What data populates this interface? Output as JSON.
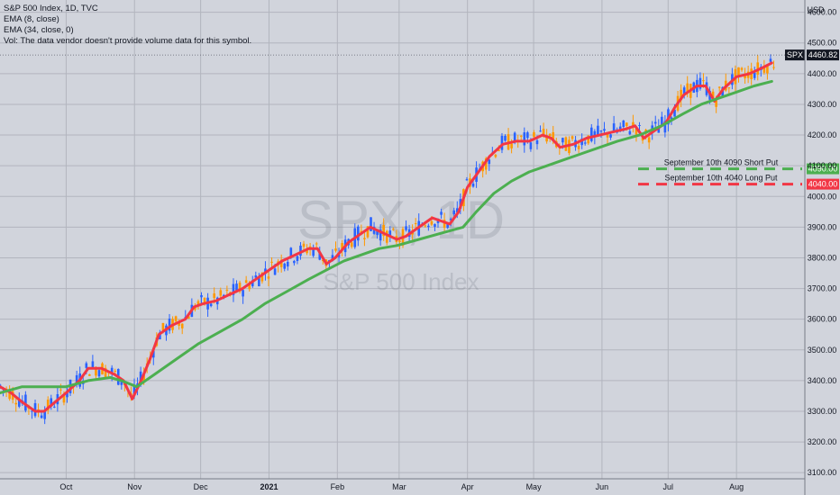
{
  "legend": {
    "title": "S&P 500 Index, 1D, TVC",
    "ema8": "EMA (8, close)",
    "ema34": "EMA (34, close, 0)",
    "vol": "Vol: The data vendor doesn't provide volume data for this symbol."
  },
  "watermark": {
    "symbol": "SPX, 1D",
    "name": "S&P 500 Index"
  },
  "currency": "USD",
  "chart_data": {
    "type": "line",
    "title": "S&P 500 Index, 1D, TVC",
    "y_ticks": [
      3100,
      3200,
      3300,
      3400,
      3500,
      3600,
      3700,
      3800,
      3900,
      4000,
      4100,
      4200,
      4300,
      4400,
      4500,
      4600
    ],
    "y_tick_labels": [
      "3100.00",
      "3200.00",
      "3300.00",
      "3400.00",
      "3500.00",
      "3600.00",
      "3700.00",
      "3800.00",
      "3900.00",
      "4000.00",
      "4100.00",
      "4200.00",
      "4300.00",
      "4400.00",
      "4500.00",
      "4600.00"
    ],
    "ylim": [
      3080,
      4640
    ],
    "x_ticks": [
      {
        "label": "Oct",
        "t": 30
      },
      {
        "label": "Nov",
        "t": 61
      },
      {
        "label": "Dec",
        "t": 91
      },
      {
        "label": "2021",
        "t": 122,
        "bold": true
      },
      {
        "label": "Feb",
        "t": 153
      },
      {
        "label": "Mar",
        "t": 181
      },
      {
        "label": "Apr",
        "t": 212
      },
      {
        "label": "May",
        "t": 242
      },
      {
        "label": "Jun",
        "t": 273
      },
      {
        "label": "Jul",
        "t": 303
      },
      {
        "label": "Aug",
        "t": 334
      }
    ],
    "xlim": [
      0,
      365
    ],
    "series": [
      {
        "name": "EMA (8, close)",
        "color": "#f23645",
        "points": [
          [
            0,
            3380
          ],
          [
            5,
            3360
          ],
          [
            10,
            3330
          ],
          [
            16,
            3300
          ],
          [
            20,
            3300
          ],
          [
            25,
            3330
          ],
          [
            30,
            3360
          ],
          [
            36,
            3400
          ],
          [
            40,
            3440
          ],
          [
            46,
            3440
          ],
          [
            52,
            3420
          ],
          [
            56,
            3400
          ],
          [
            60,
            3340
          ],
          [
            64,
            3400
          ],
          [
            68,
            3470
          ],
          [
            72,
            3550
          ],
          [
            78,
            3580
          ],
          [
            84,
            3600
          ],
          [
            88,
            3640
          ],
          [
            92,
            3650
          ],
          [
            98,
            3660
          ],
          [
            104,
            3680
          ],
          [
            110,
            3700
          ],
          [
            116,
            3730
          ],
          [
            122,
            3760
          ],
          [
            128,
            3790
          ],
          [
            134,
            3810
          ],
          [
            140,
            3830
          ],
          [
            144,
            3830
          ],
          [
            148,
            3780
          ],
          [
            152,
            3800
          ],
          [
            158,
            3850
          ],
          [
            164,
            3880
          ],
          [
            168,
            3900
          ],
          [
            174,
            3880
          ],
          [
            180,
            3860
          ],
          [
            184,
            3870
          ],
          [
            190,
            3900
          ],
          [
            196,
            3930
          ],
          [
            200,
            3920
          ],
          [
            204,
            3910
          ],
          [
            208,
            3950
          ],
          [
            212,
            4030
          ],
          [
            216,
            4070
          ],
          [
            222,
            4130
          ],
          [
            228,
            4170
          ],
          [
            234,
            4180
          ],
          [
            240,
            4180
          ],
          [
            246,
            4200
          ],
          [
            250,
            4190
          ],
          [
            254,
            4160
          ],
          [
            260,
            4170
          ],
          [
            266,
            4190
          ],
          [
            272,
            4200
          ],
          [
            278,
            4210
          ],
          [
            284,
            4220
          ],
          [
            288,
            4230
          ],
          [
            292,
            4190
          ],
          [
            298,
            4220
          ],
          [
            302,
            4240
          ],
          [
            306,
            4290
          ],
          [
            310,
            4330
          ],
          [
            316,
            4360
          ],
          [
            320,
            4360
          ],
          [
            324,
            4310
          ],
          [
            328,
            4350
          ],
          [
            334,
            4390
          ],
          [
            340,
            4400
          ],
          [
            346,
            4420
          ],
          [
            350,
            4435
          ]
        ]
      },
      {
        "name": "EMA (34, close, 0)",
        "color": "#4caf50",
        "points": [
          [
            0,
            3360
          ],
          [
            10,
            3380
          ],
          [
            20,
            3380
          ],
          [
            30,
            3380
          ],
          [
            40,
            3400
          ],
          [
            50,
            3410
          ],
          [
            55,
            3400
          ],
          [
            62,
            3380
          ],
          [
            70,
            3420
          ],
          [
            80,
            3470
          ],
          [
            90,
            3520
          ],
          [
            100,
            3560
          ],
          [
            110,
            3600
          ],
          [
            120,
            3650
          ],
          [
            130,
            3690
          ],
          [
            140,
            3730
          ],
          [
            148,
            3760
          ],
          [
            156,
            3790
          ],
          [
            164,
            3810
          ],
          [
            172,
            3830
          ],
          [
            180,
            3840
          ],
          [
            190,
            3860
          ],
          [
            200,
            3880
          ],
          [
            210,
            3900
          ],
          [
            216,
            3950
          ],
          [
            224,
            4010
          ],
          [
            232,
            4050
          ],
          [
            240,
            4080
          ],
          [
            248,
            4100
          ],
          [
            256,
            4120
          ],
          [
            264,
            4140
          ],
          [
            272,
            4160
          ],
          [
            280,
            4180
          ],
          [
            290,
            4200
          ],
          [
            300,
            4230
          ],
          [
            310,
            4270
          ],
          [
            318,
            4300
          ],
          [
            326,
            4320
          ],
          [
            334,
            4340
          ],
          [
            342,
            4360
          ],
          [
            350,
            4375
          ]
        ]
      }
    ],
    "last_price": {
      "name": "SPX",
      "value": 4460.82,
      "label": "4460.82"
    },
    "price_lines": [
      {
        "label": "September 10th 4090 Short Put",
        "value": 4090,
        "tag": "4090.00",
        "color": "#4caf50"
      },
      {
        "label": "September 10th 4040 Long Put",
        "value": 4040,
        "tag": "4040.00",
        "color": "#f23645"
      }
    ],
    "candle_colors": {
      "up": "#2962ff",
      "down": "#ff9800"
    }
  }
}
